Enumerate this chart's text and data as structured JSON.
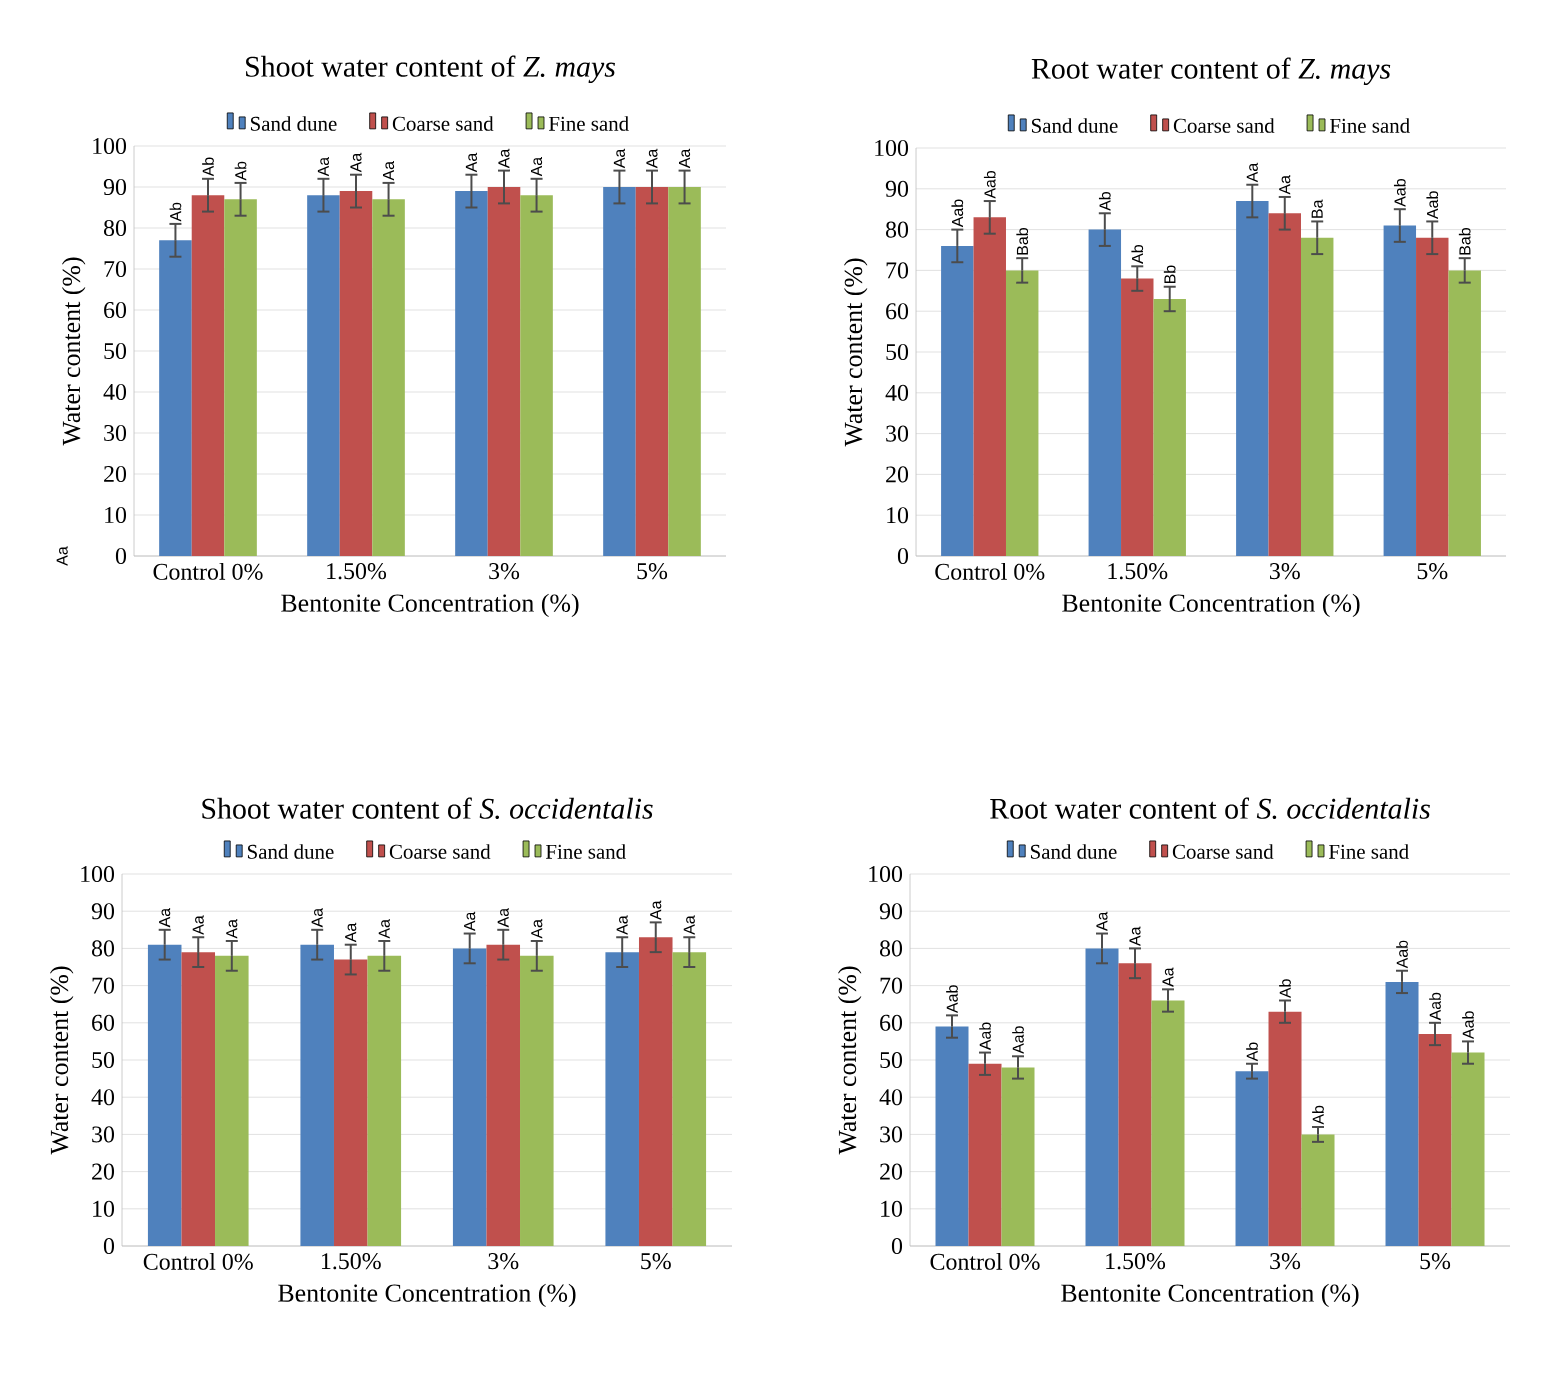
{
  "chart_data": [
    {
      "type": "bar",
      "title": "Shoot water content of *Z. mays*",
      "xlabel": "Bentonite Concentration (%)",
      "ylabel": "Water content (%)",
      "categories": [
        "Control 0%",
        "1.50%",
        "3%",
        "5%"
      ],
      "ylim": [
        0,
        100
      ],
      "yticks": [
        0,
        10,
        20,
        30,
        40,
        50,
        60,
        70,
        80,
        90,
        100
      ],
      "grid": "y",
      "legend": "top",
      "annotations": [
        "Aa"
      ],
      "series": [
        {
          "name": "Sand dune",
          "color": "#4f81bd",
          "values": [
            77,
            88,
            89,
            90
          ],
          "errors": [
            4,
            4,
            4,
            4
          ],
          "value_labels": [
            "Ab",
            "Aa",
            "Aa",
            "Aa"
          ]
        },
        {
          "name": "Coarse sand",
          "color": "#c0504d",
          "values": [
            88,
            89,
            90,
            90
          ],
          "errors": [
            4,
            4,
            4,
            4
          ],
          "value_labels": [
            "Ab",
            "Aa",
            "Aa",
            "Aa"
          ]
        },
        {
          "name": "Fine sand",
          "color": "#9bbb59",
          "values": [
            87,
            87,
            88,
            90
          ],
          "errors": [
            4,
            4,
            4,
            4
          ],
          "value_labels": [
            "Ab",
            "Aa",
            "Aa",
            "Aa"
          ]
        }
      ]
    },
    {
      "type": "bar",
      "title": "Root water content of *Z. mays*",
      "xlabel": "Bentonite Concentration (%)",
      "ylabel": "Water content (%)",
      "categories": [
        "Control 0%",
        "1.50%",
        "3%",
        "5%"
      ],
      "ylim": [
        0,
        100
      ],
      "yticks": [
        0,
        10,
        20,
        30,
        40,
        50,
        60,
        70,
        80,
        90,
        100
      ],
      "grid": "y",
      "legend": "top",
      "series": [
        {
          "name": "Sand dune",
          "color": "#4f81bd",
          "values": [
            76,
            80,
            87,
            81
          ],
          "errors": [
            4,
            4,
            4,
            4
          ],
          "value_labels": [
            "Aab",
            "Ab",
            "Aa",
            "Aab"
          ]
        },
        {
          "name": "Coarse sand",
          "color": "#c0504d",
          "values": [
            83,
            68,
            84,
            78
          ],
          "errors": [
            4,
            3,
            4,
            4
          ],
          "value_labels": [
            "Aab",
            "Ab",
            "Aa",
            "Aab"
          ]
        },
        {
          "name": "Fine sand",
          "color": "#9bbb59",
          "values": [
            70,
            63,
            78,
            70
          ],
          "errors": [
            3,
            3,
            4,
            3
          ],
          "value_labels": [
            "Bab",
            "Bb",
            "Ba",
            "Bab"
          ]
        }
      ]
    },
    {
      "type": "bar",
      "title": "Shoot water content of *S. occidentalis*",
      "xlabel": "Bentonite Concentration (%)",
      "ylabel": "Water content (%)",
      "categories": [
        "Control 0%",
        "1.50%",
        "3%",
        "5%"
      ],
      "ylim": [
        0,
        100
      ],
      "yticks": [
        0,
        10,
        20,
        30,
        40,
        50,
        60,
        70,
        80,
        90,
        100
      ],
      "grid": "y",
      "legend": "top",
      "series": [
        {
          "name": "Sand dune",
          "color": "#4f81bd",
          "values": [
            81,
            81,
            80,
            79
          ],
          "errors": [
            4,
            4,
            4,
            4
          ],
          "value_labels": [
            "Aa",
            "Aa",
            "Aa",
            "Aa"
          ]
        },
        {
          "name": "Coarse sand",
          "color": "#c0504d",
          "values": [
            79,
            77,
            81,
            83
          ],
          "errors": [
            4,
            4,
            4,
            4
          ],
          "value_labels": [
            "Aa",
            "Aa",
            "Aa",
            "Aa"
          ]
        },
        {
          "name": "Fine sand",
          "color": "#9bbb59",
          "values": [
            78,
            78,
            78,
            79
          ],
          "errors": [
            4,
            4,
            4,
            4
          ],
          "value_labels": [
            "Aa",
            "Aa",
            "Aa",
            "Aa"
          ]
        }
      ]
    },
    {
      "type": "bar",
      "title": "Root water content of *S. occidentalis*",
      "xlabel": "Bentonite Concentration (%)",
      "ylabel": "Water content (%)",
      "categories": [
        "Control 0%",
        "1.50%",
        "3%",
        "5%"
      ],
      "ylim": [
        0,
        100
      ],
      "yticks": [
        0,
        10,
        20,
        30,
        40,
        50,
        60,
        70,
        80,
        90,
        100
      ],
      "grid": "y",
      "legend": "top",
      "series": [
        {
          "name": "Sand dune",
          "color": "#4f81bd",
          "values": [
            59,
            80,
            47,
            71
          ],
          "errors": [
            3,
            4,
            2,
            3
          ],
          "value_labels": [
            "Aab",
            "Aa",
            "Ab",
            "Aab"
          ]
        },
        {
          "name": "Coarse sand",
          "color": "#c0504d",
          "values": [
            49,
            76,
            63,
            57
          ],
          "errors": [
            3,
            4,
            3,
            3
          ],
          "value_labels": [
            "Aab",
            "Aa",
            "Ab",
            "Aab"
          ]
        },
        {
          "name": "Fine sand",
          "color": "#9bbb59",
          "values": [
            48,
            66,
            30,
            52
          ],
          "errors": [
            3,
            3,
            2,
            3
          ],
          "value_labels": [
            "Aab",
            "Aa",
            "Ab",
            "Aab"
          ]
        }
      ]
    }
  ]
}
